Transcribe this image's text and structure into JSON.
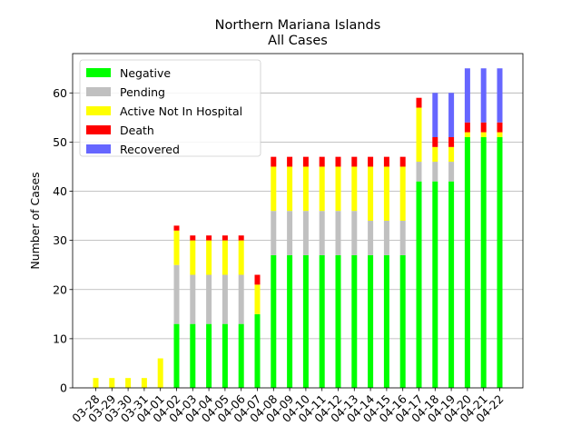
{
  "chart_data": {
    "type": "bar",
    "stacked": true,
    "title": "Northern Mariana Islands",
    "subtitle": "All Cases",
    "xlabel": "",
    "ylabel": "Number of Cases",
    "ylim": [
      0,
      68
    ],
    "yticks": [
      0,
      10,
      20,
      30,
      40,
      50,
      60
    ],
    "grid": "horizontal",
    "legend_position": "top-left",
    "categories": [
      "03-28",
      "03-29",
      "03-30",
      "03-31",
      "04-01",
      "04-02",
      "04-03",
      "04-04",
      "04-05",
      "04-06",
      "04-07",
      "04-08",
      "04-09",
      "04-10",
      "04-11",
      "04-12",
      "04-13",
      "04-14",
      "04-15",
      "04-16",
      "04-17",
      "04-18",
      "04-19",
      "04-20",
      "04-21",
      "04-22"
    ],
    "series": [
      {
        "name": "Negative",
        "color": "#00ff00",
        "values": [
          0,
          0,
          0,
          0,
          0,
          13,
          13,
          13,
          13,
          13,
          15,
          27,
          27,
          27,
          27,
          27,
          27,
          27,
          27,
          27,
          42,
          42,
          42,
          51,
          51,
          51
        ]
      },
      {
        "name": "Pending",
        "color": "#c0c0c0",
        "values": [
          0,
          0,
          0,
          0,
          0,
          12,
          10,
          10,
          10,
          10,
          0,
          9,
          9,
          9,
          9,
          9,
          9,
          7,
          7,
          7,
          4,
          4,
          4,
          0,
          0,
          0
        ]
      },
      {
        "name": "Active Not In Hospital",
        "color": "#ffff00",
        "values": [
          2,
          2,
          2,
          2,
          6,
          7,
          7,
          7,
          7,
          7,
          6,
          9,
          9,
          9,
          9,
          9,
          9,
          11,
          11,
          11,
          11,
          3,
          3,
          1,
          1,
          1
        ]
      },
      {
        "name": "Death",
        "color": "#ff0000",
        "values": [
          0,
          0,
          0,
          0,
          0,
          1,
          1,
          1,
          1,
          1,
          2,
          2,
          2,
          2,
          2,
          2,
          2,
          2,
          2,
          2,
          2,
          2,
          2,
          2,
          2,
          2
        ]
      },
      {
        "name": "Recovered",
        "color": "#6666ff",
        "values": [
          0,
          0,
          0,
          0,
          0,
          0,
          0,
          0,
          0,
          0,
          0,
          0,
          0,
          0,
          0,
          0,
          0,
          0,
          0,
          0,
          0,
          9,
          9,
          11,
          11,
          11
        ]
      }
    ]
  }
}
